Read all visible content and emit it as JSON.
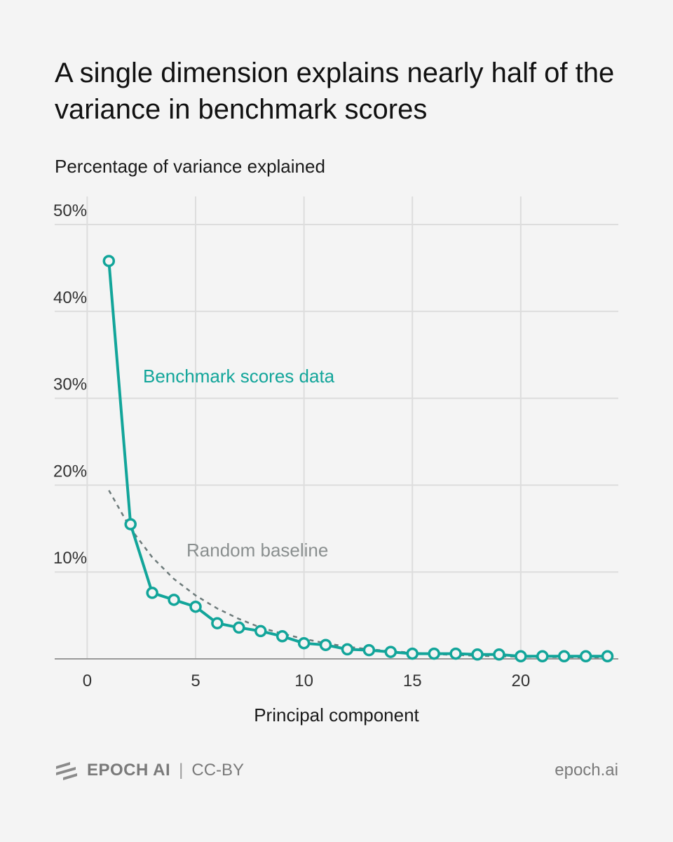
{
  "title": "A single dimension explains nearly half of the variance in benchmark scores",
  "footer": {
    "brand": "EPOCH AI",
    "separator": "|",
    "license": "CC-BY",
    "site": "epoch.ai",
    "logo_icon": "epoch-logo-icon"
  },
  "colors": {
    "series": "#12a59a",
    "baseline": "#6e7b7b",
    "grid": "#dddddd",
    "axis": "#999999",
    "background": "#f4f4f4"
  },
  "chart_data": {
    "type": "line",
    "title": "A single dimension explains nearly half of the variance in benchmark scores",
    "xlabel": "Principal component",
    "ylabel": "Percentage of variance explained",
    "xlim": [
      -1.5,
      24.5
    ],
    "ylim": [
      0,
      50
    ],
    "xticks": [
      0,
      5,
      10,
      15,
      20
    ],
    "xtick_labels": [
      "0",
      "5",
      "10",
      "15",
      "20"
    ],
    "yticks": [
      10,
      20,
      30,
      40,
      50
    ],
    "ytick_labels": [
      "10%",
      "20%",
      "30%",
      "40%",
      "50%"
    ],
    "grid": true,
    "series": [
      {
        "name": "Benchmark scores data",
        "style": "solid line with open circle markers",
        "x": [
          1,
          2,
          3,
          4,
          5,
          6,
          7,
          8,
          9,
          10,
          11,
          12,
          13,
          14,
          15,
          16,
          17,
          18,
          19,
          20,
          21,
          22,
          23,
          24
        ],
        "y": [
          45.8,
          15.5,
          7.6,
          6.8,
          6.0,
          4.1,
          3.6,
          3.2,
          2.6,
          1.8,
          1.6,
          1.1,
          1.0,
          0.8,
          0.6,
          0.6,
          0.6,
          0.5,
          0.5,
          0.3,
          0.3,
          0.3,
          0.3,
          0.3
        ]
      },
      {
        "name": "Random baseline",
        "style": "dashed line",
        "x": [
          1,
          2,
          3,
          4,
          5,
          6,
          7,
          8,
          9,
          10,
          11,
          12,
          13,
          14,
          15,
          16,
          17,
          18,
          19,
          20,
          21,
          22,
          23,
          24
        ],
        "y": [
          19.4,
          15.0,
          11.7,
          9.2,
          7.3,
          5.8,
          4.6,
          3.6,
          2.9,
          2.3,
          1.8,
          1.4,
          1.1,
          0.9,
          0.7,
          0.55,
          0.45,
          0.35,
          0.3,
          0.25,
          0.2,
          0.2,
          0.15,
          0.15
        ]
      }
    ]
  }
}
